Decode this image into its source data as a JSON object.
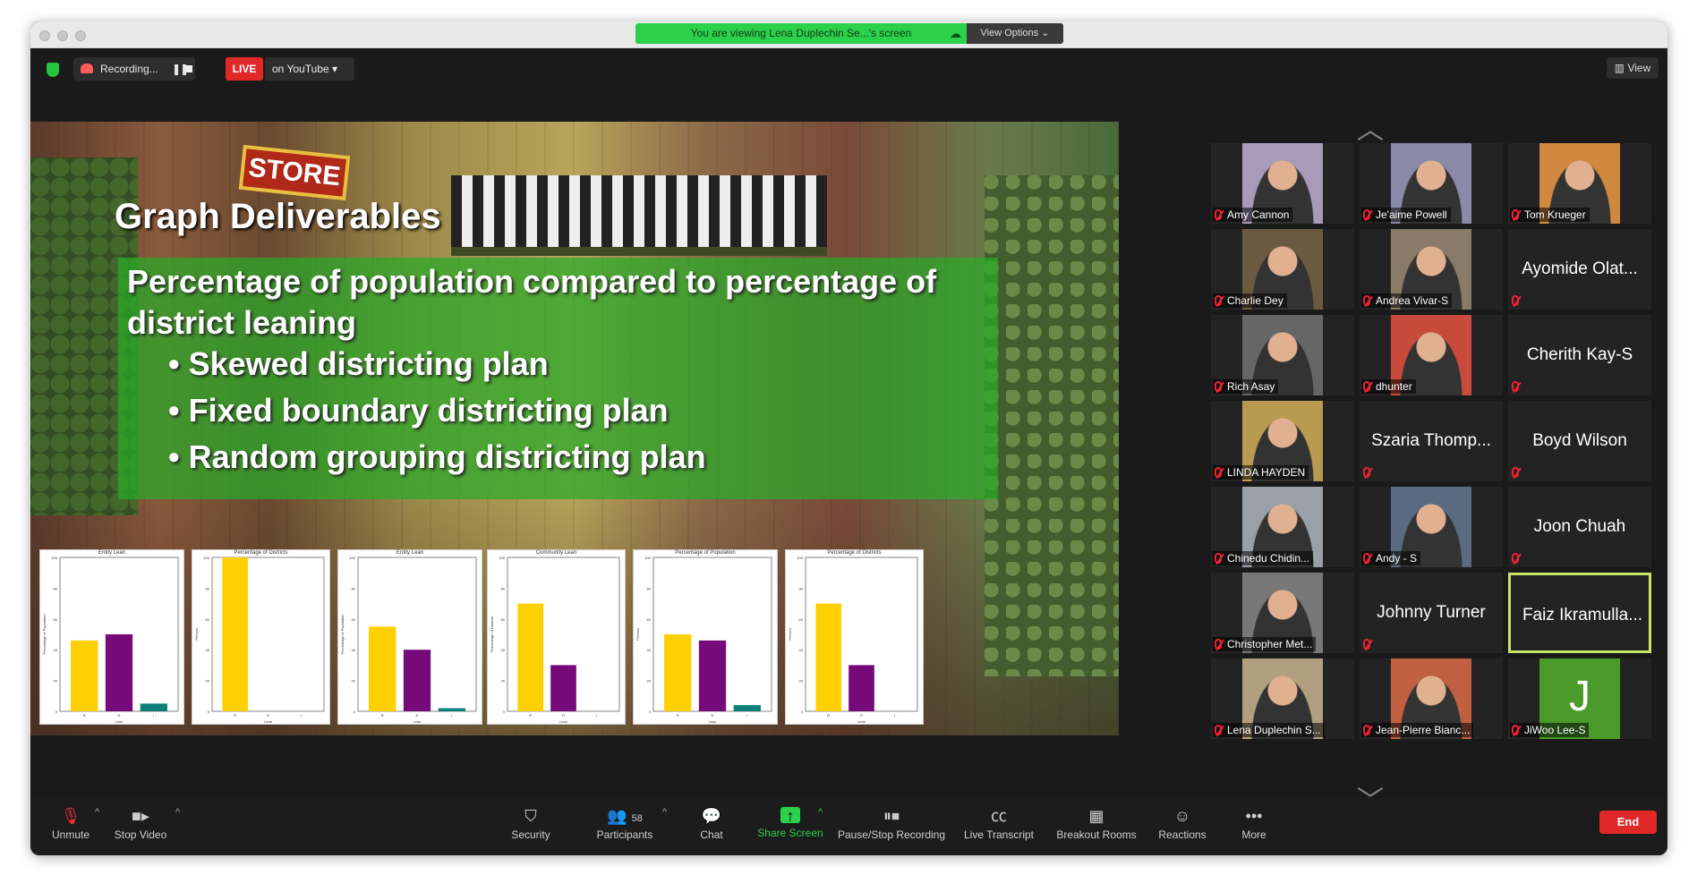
{
  "window": {
    "sharing_banner": "You are viewing Lena Duplechin Se...'s screen",
    "view_options_label": "View Options",
    "recording_label": "Recording...",
    "live_label": "LIVE",
    "youtube_label": "on YouTube",
    "view_label": "View"
  },
  "slide": {
    "title": "Graph Deliverables",
    "main_text": "Percentage of population compared to percentage of district leaning",
    "bullets": [
      "Skewed districting plan",
      "Fixed boundary districting plan",
      "Random grouping districting plan"
    ],
    "store_sign": "STORE"
  },
  "chart_data": [
    {
      "type": "bar",
      "title": "Entity Lean",
      "categories": [
        "R",
        "D",
        "I"
      ],
      "values": [
        46,
        50,
        5
      ],
      "ylim": [
        0,
        100
      ],
      "ylabel": "Percentage of Population",
      "xlabel": "Lean",
      "colors": [
        "#ffd000",
        "#760a78",
        "#0e7f78"
      ]
    },
    {
      "type": "bar",
      "title": "Percentage of Districts",
      "categories": [
        "R",
        "D",
        "I"
      ],
      "values": [
        100,
        0,
        0
      ],
      "ylim": [
        0,
        100
      ],
      "ylabel": "Percent",
      "xlabel": "Lean",
      "colors": [
        "#ffd000",
        "#760a78",
        "#0e7f78"
      ]
    },
    {
      "type": "bar",
      "title": "Entity Lean",
      "categories": [
        "R",
        "D",
        "I"
      ],
      "values": [
        55,
        40,
        2
      ],
      "ylim": [
        0,
        100
      ],
      "ylabel": "Percentage of Population",
      "xlabel": "Lean",
      "colors": [
        "#ffd000",
        "#760a78",
        "#0e7f78"
      ]
    },
    {
      "type": "bar",
      "title": "Community Lean",
      "categories": [
        "R",
        "D",
        "I"
      ],
      "values": [
        70,
        30,
        0
      ],
      "ylim": [
        0,
        100
      ],
      "ylabel": "Percentage of Districts",
      "xlabel": "Lean",
      "colors": [
        "#ffd000",
        "#760a78",
        "#0e7f78"
      ]
    },
    {
      "type": "bar",
      "title": "Percentage of Population",
      "categories": [
        "R",
        "D",
        "I"
      ],
      "values": [
        50,
        46,
        4
      ],
      "ylim": [
        0,
        100
      ],
      "ylabel": "Percent",
      "xlabel": "Lean",
      "colors": [
        "#ffd000",
        "#760a78",
        "#0e7f78"
      ]
    },
    {
      "type": "bar",
      "title": "Percentage of Districts",
      "categories": [
        "R",
        "D",
        "I"
      ],
      "values": [
        70,
        30,
        0
      ],
      "ylim": [
        0,
        100
      ],
      "ylabel": "Percent",
      "xlabel": "Lean",
      "colors": [
        "#ffd000",
        "#760a78",
        "#0e7f78"
      ]
    }
  ],
  "participants": [
    {
      "name": "Amy Cannon",
      "video": true,
      "color": "#a89ab8"
    },
    {
      "name": "Je'aime Powell",
      "video": true,
      "color": "#8a8aa8"
    },
    {
      "name": "Tom Krueger",
      "video": true,
      "color": "#d08840"
    },
    {
      "name": "Charlie Dey",
      "video": true,
      "color": "#6a5a40"
    },
    {
      "name": "Andrea Vivar-S",
      "video": true,
      "color": "#8a7a68"
    },
    {
      "name": "Ayomide Olat...",
      "video": false
    },
    {
      "name": "Rich Asay",
      "video": true,
      "color": "#666"
    },
    {
      "name": "dhunter",
      "video": true,
      "color": "#c84a3a"
    },
    {
      "name": "Cherith Kay-S",
      "video": false
    },
    {
      "name": "LINDA HAYDEN",
      "video": true,
      "color": "#b89a50"
    },
    {
      "name": "Szaria Thomp...",
      "video": false
    },
    {
      "name": "Boyd Wilson",
      "video": false
    },
    {
      "name": "Chinedu Chidin...",
      "video": true,
      "color": "#9aa0a8"
    },
    {
      "name": "Andy - S",
      "video": true,
      "color": "#5a6a80"
    },
    {
      "name": "Joon Chuah",
      "video": false
    },
    {
      "name": "Christopher Met...",
      "video": true,
      "color": "#777"
    },
    {
      "name": "Johnny Turner",
      "video": false
    },
    {
      "name": "Faiz Ikramulla...",
      "video": false,
      "active": true
    },
    {
      "name": "Lena Duplechin S...",
      "video": true,
      "color": "#b0a080"
    },
    {
      "name": "Jean-Pierre Bianc...",
      "video": true,
      "color": "#c06040"
    },
    {
      "name": "JiWoo Lee-S",
      "video": true,
      "color": "#4a9a2a",
      "initial": "J"
    }
  ],
  "toolbar": {
    "unmute": "Unmute",
    "stop_video": "Stop Video",
    "security": "Security",
    "participants": "Participants",
    "participants_count": "58",
    "chat": "Chat",
    "share_screen": "Share Screen",
    "pause_stop": "Pause/Stop Recording",
    "live_transcript": "Live Transcript",
    "breakout": "Breakout Rooms",
    "reactions": "Reactions",
    "more": "More",
    "end": "End"
  }
}
